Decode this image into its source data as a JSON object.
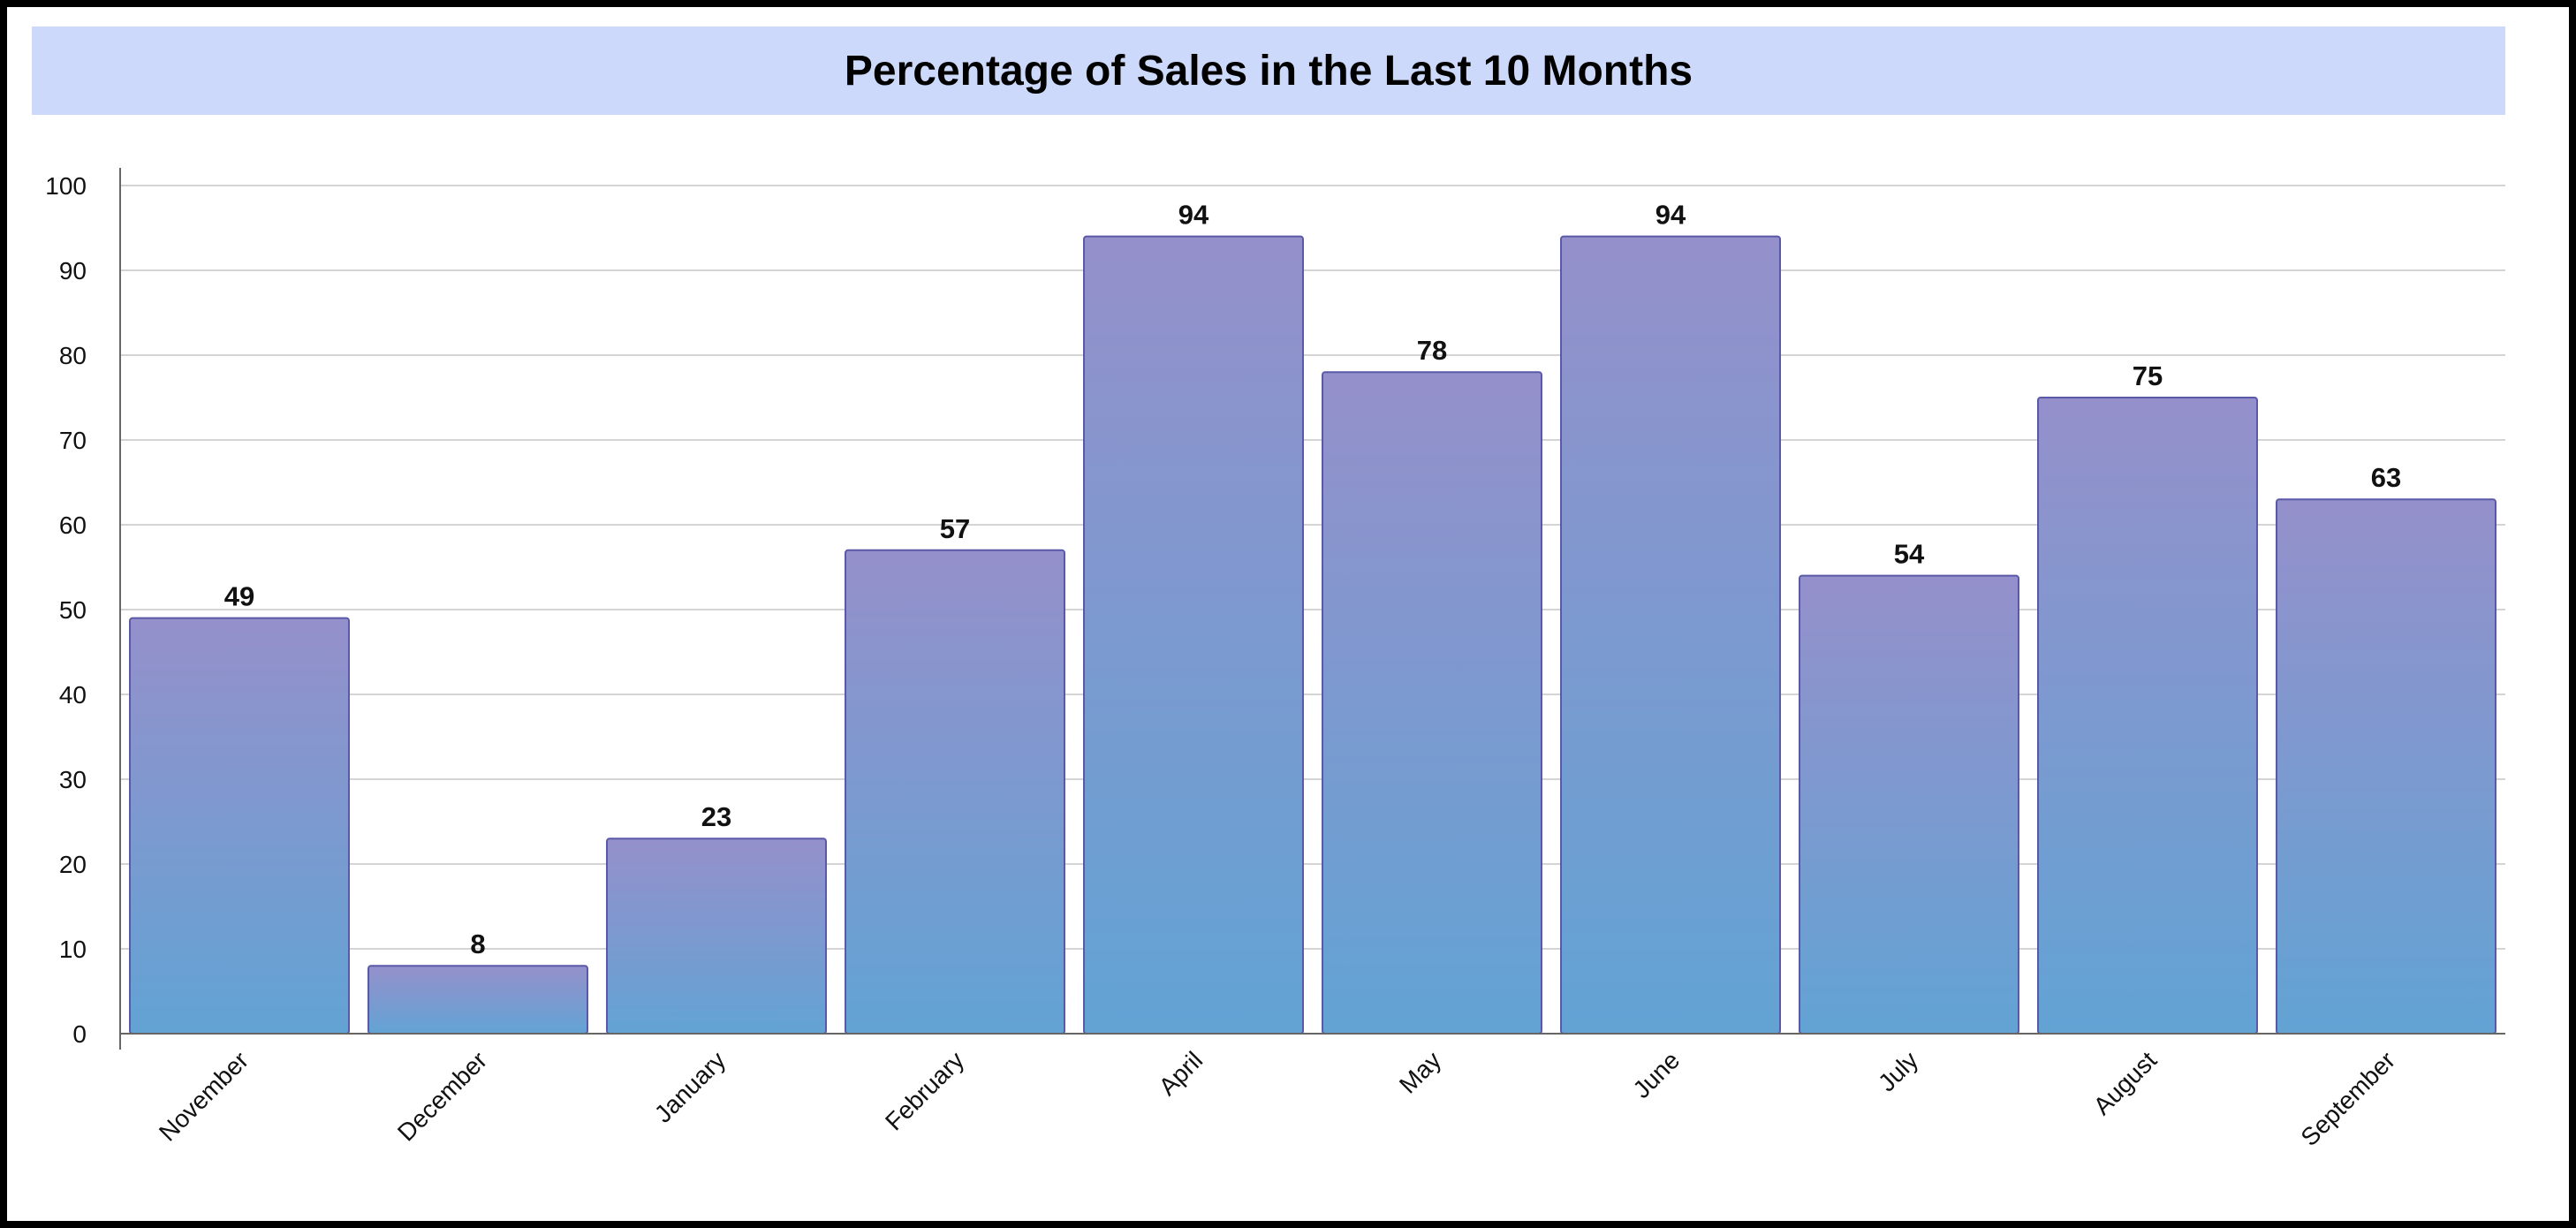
{
  "chart_data": {
    "type": "bar",
    "title": "Percentage of Sales in the Last 10 Months",
    "xlabel": "",
    "ylabel": "",
    "categories": [
      "November",
      "December",
      "January",
      "February",
      "April",
      "May",
      "June",
      "July",
      "August",
      "September"
    ],
    "values": [
      49,
      8,
      23,
      57,
      94,
      78,
      94,
      54,
      75,
      63
    ],
    "ylim": [
      0,
      100
    ],
    "yticks": [
      "0",
      "10",
      "20",
      "30",
      "40",
      "50",
      "60",
      "70",
      "80",
      "90",
      "100"
    ],
    "grid": true,
    "legend": "none",
    "colors": {
      "bar_top": "#9590cb",
      "bar_bottom": "#62a3d4",
      "bar_border": "#5a59a8",
      "title_background": "#cdd9fb",
      "grid": "#d4d4d4",
      "axis": "#666666"
    }
  }
}
